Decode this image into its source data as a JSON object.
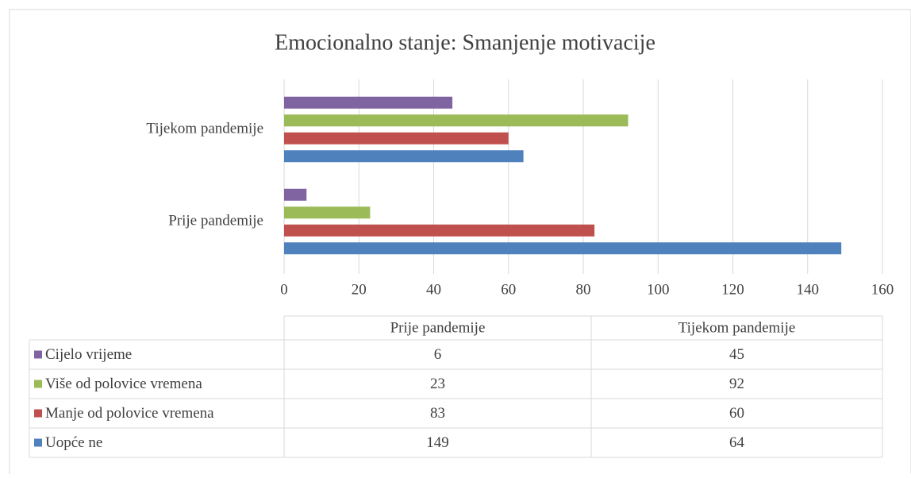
{
  "chart_data": {
    "type": "bar",
    "orientation": "horizontal",
    "title": "Emocionalno stanje: Smanjenje motivacije",
    "categories": [
      "Prije pandemije",
      "Tijekom pandemije"
    ],
    "series": [
      {
        "name": "Uopće ne",
        "color": "#4f81bd",
        "values": [
          149,
          64
        ]
      },
      {
        "name": "Manje od polovice vremena",
        "color": "#c0504d",
        "values": [
          83,
          60
        ]
      },
      {
        "name": "Više od polovice vremena",
        "color": "#9bbb59",
        "values": [
          23,
          92
        ]
      },
      {
        "name": "Cijelo vrijeme",
        "color": "#8064a2",
        "values": [
          6,
          45
        ]
      }
    ],
    "xlim": [
      0,
      160
    ],
    "xticks": [
      0,
      20,
      40,
      60,
      80,
      100,
      120,
      140,
      160
    ],
    "grid": true,
    "data_table": true
  }
}
